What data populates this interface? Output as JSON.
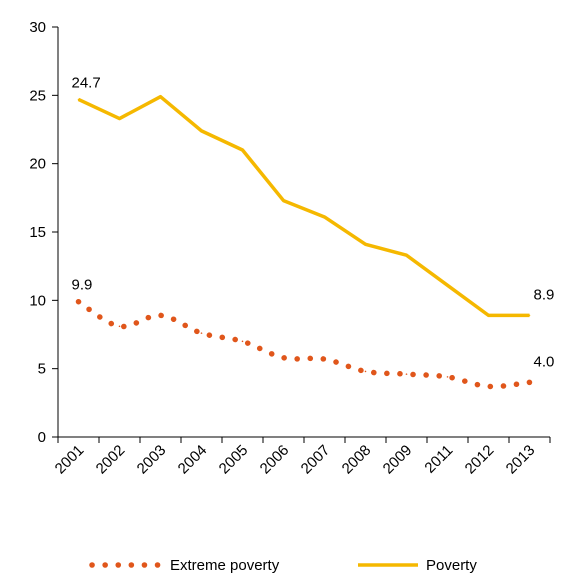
{
  "chart_data": {
    "type": "line",
    "title": "",
    "xlabel": "",
    "ylabel": "",
    "ylim": [
      0,
      30
    ],
    "yticks": [
      "0",
      "5",
      "10",
      "15",
      "20",
      "25",
      "30"
    ],
    "categories": [
      "2001",
      "2002",
      "2003",
      "2004",
      "2005",
      "2006",
      "2007",
      "2008",
      "2009",
      "2011",
      "2012",
      "2013"
    ],
    "grid": false,
    "legend_position": "bottom",
    "series": [
      {
        "name": "Extreme poverty",
        "style": "dotted",
        "color": "#e0561b",
        "values": [
          9.9,
          8.1,
          8.9,
          7.6,
          7.0,
          5.8,
          5.7,
          4.8,
          4.6,
          4.4,
          3.7,
          4.0
        ],
        "labels": [
          {
            "index": 0,
            "text": "9.9"
          },
          {
            "index": 11,
            "text": "4.0"
          }
        ]
      },
      {
        "name": "Poverty",
        "style": "solid",
        "color": "#f5b800",
        "values": [
          24.7,
          23.3,
          24.9,
          22.4,
          21.0,
          17.3,
          16.1,
          14.1,
          13.3,
          11.1,
          8.9,
          8.9
        ],
        "labels": [
          {
            "index": 0,
            "text": "24.7"
          },
          {
            "index": 11,
            "text": "8.9"
          }
        ]
      }
    ]
  }
}
